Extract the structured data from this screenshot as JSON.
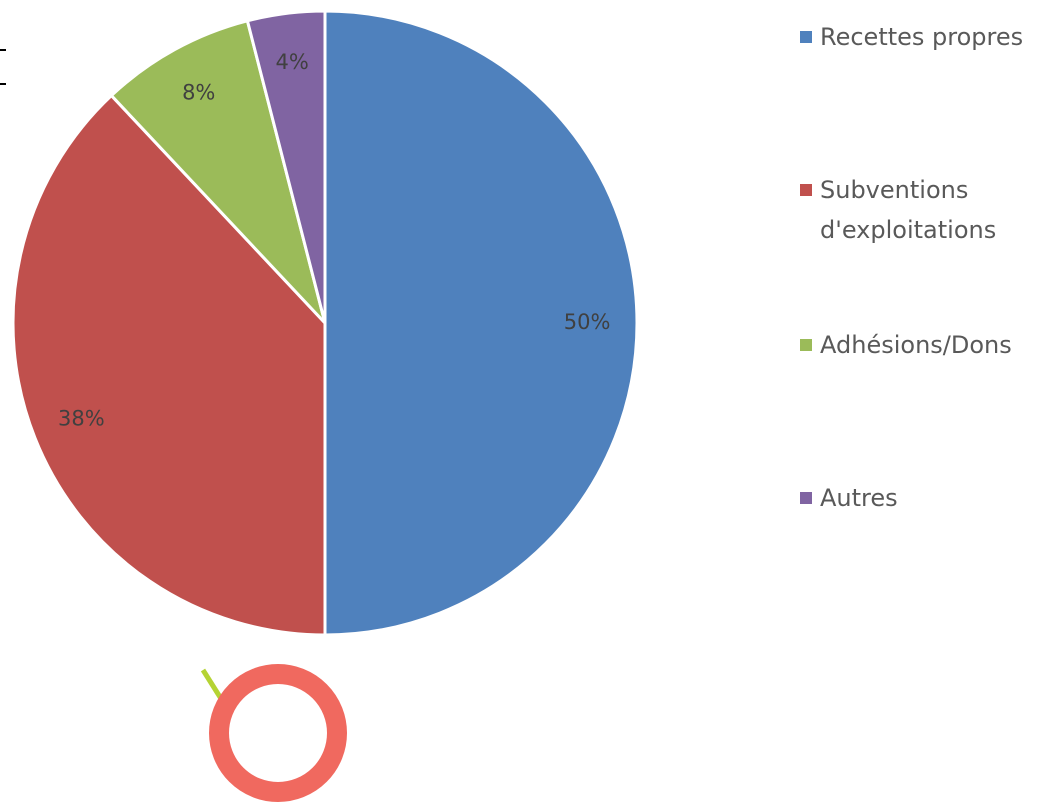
{
  "chart_data": {
    "type": "pie",
    "categories": [
      "Recettes propres",
      "Subventions d'exploitations",
      "Adhésions/Dons",
      "Autres"
    ],
    "values": [
      50,
      38,
      8,
      4
    ],
    "value_labels": [
      "50%",
      "38%",
      "8%",
      "4%"
    ],
    "colors": [
      "#4f81bd",
      "#c0504d",
      "#9bbb59",
      "#8064a2"
    ],
    "legend": "right"
  }
}
